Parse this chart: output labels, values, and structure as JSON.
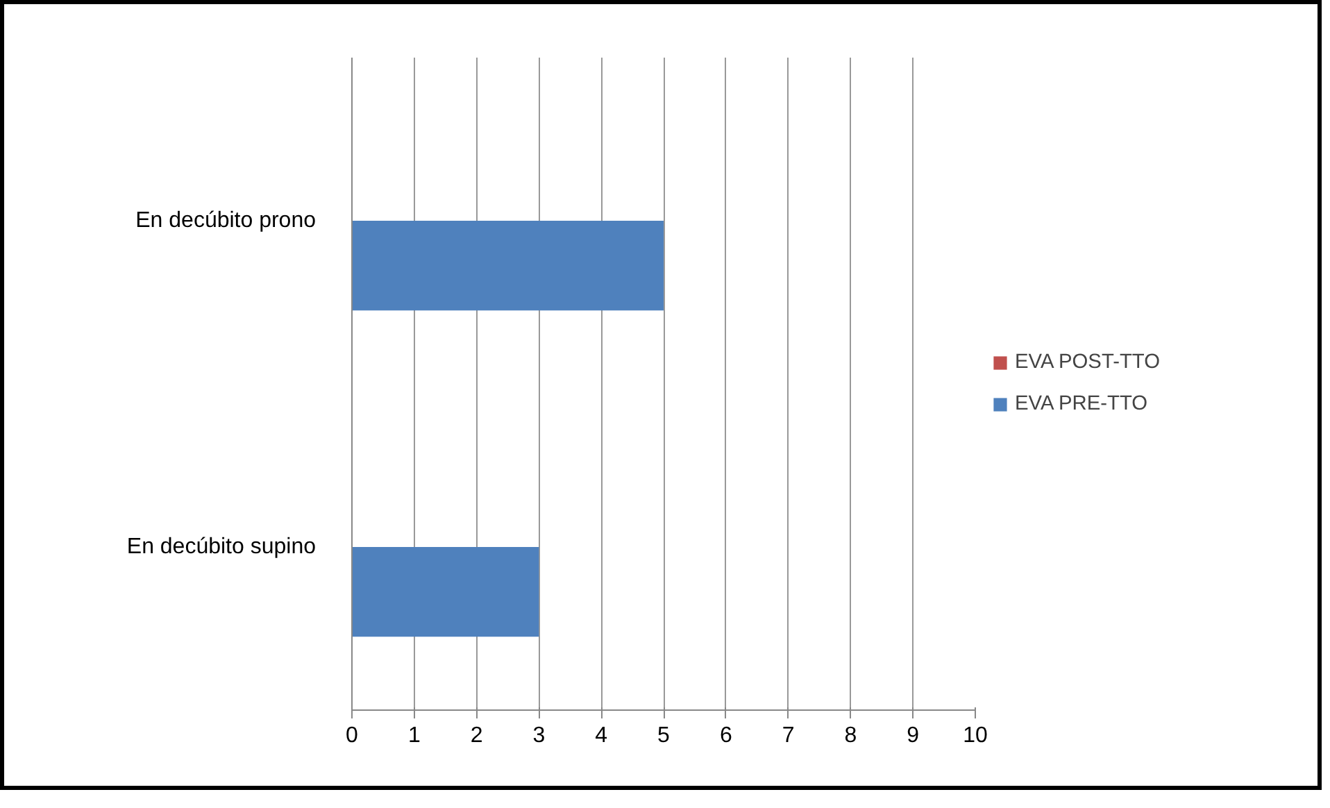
{
  "chart_data": {
    "type": "bar",
    "orientation": "horizontal",
    "categories": [
      "En decúbito prono",
      "En decúbito supino"
    ],
    "series": [
      {
        "name": "EVA POST-TTO",
        "color": "#c0504d",
        "values": [
          0,
          0
        ]
      },
      {
        "name": "EVA PRE-TTO",
        "color": "#4f81bd",
        "values": [
          5,
          3
        ]
      }
    ],
    "xlim": [
      0,
      10
    ],
    "xticks": [
      0,
      1,
      2,
      3,
      4,
      5,
      6,
      7,
      8,
      9,
      10
    ],
    "grid": "x",
    "legend": "right"
  }
}
